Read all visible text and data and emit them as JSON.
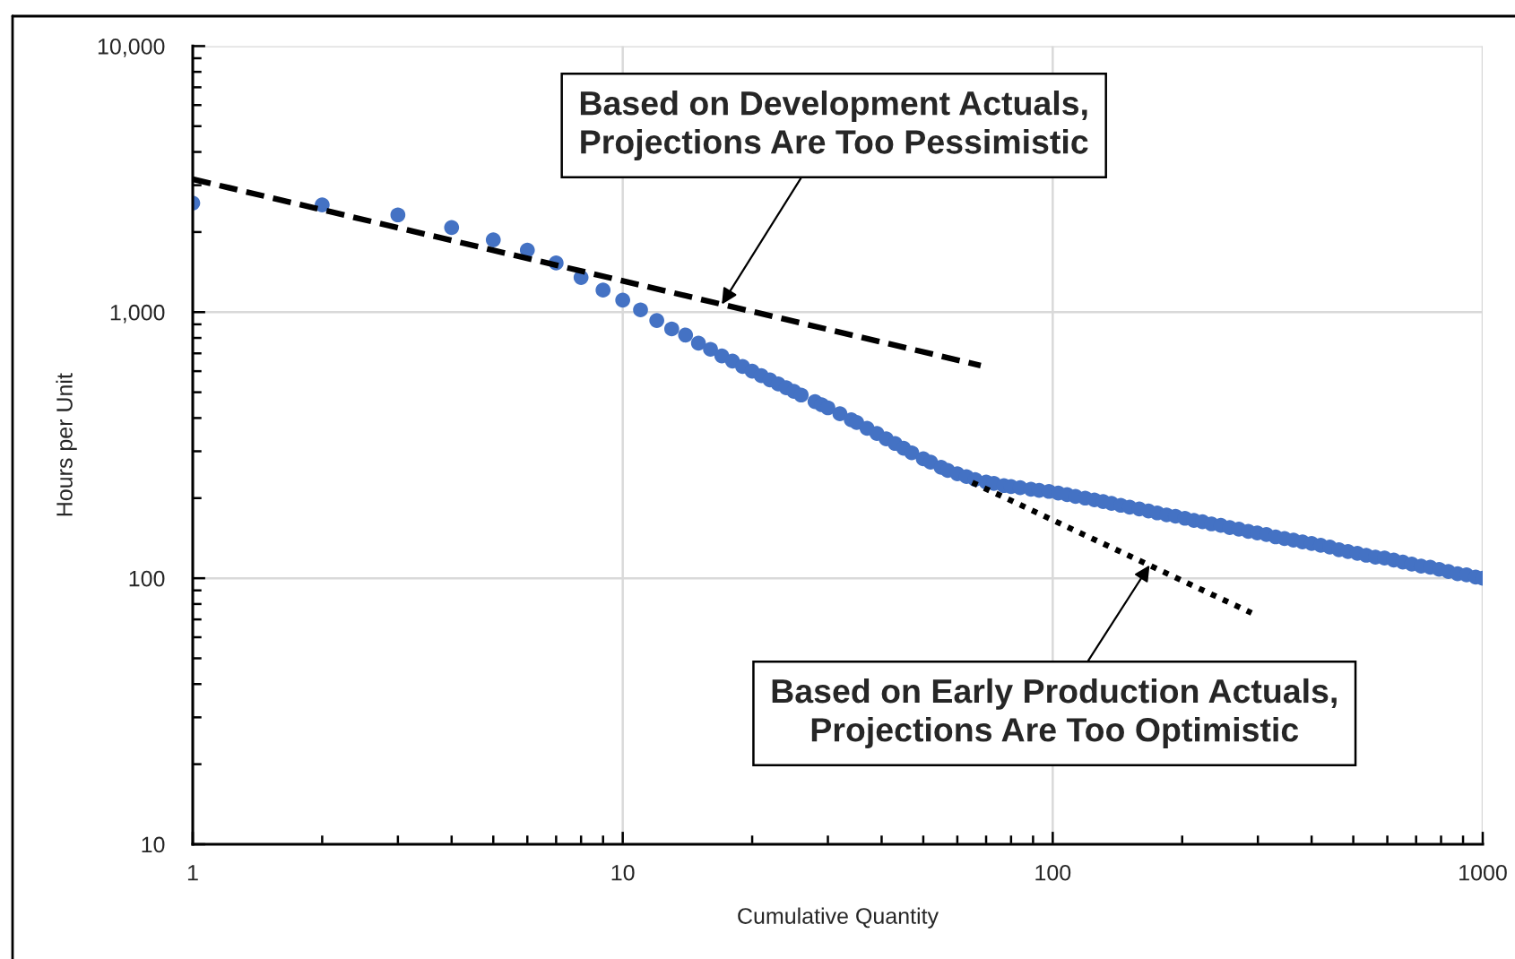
{
  "chart_data": {
    "type": "scatter",
    "xlabel": "Cumulative Quantity",
    "ylabel": "Hours per Unit",
    "log": "xy",
    "xlim": [
      1,
      1000
    ],
    "ylim": [
      10,
      10000
    ],
    "xticks": [
      1,
      10,
      100,
      1000,
      {
        "value": 2,
        "label": null
      },
      {
        "value": 3,
        "label": null
      },
      {
        "value": 4,
        "label": null
      },
      {
        "value": 5,
        "label": null
      },
      {
        "value": 6,
        "label": null
      },
      {
        "value": 7,
        "label": null
      },
      {
        "value": 8,
        "label": null
      },
      {
        "value": 9,
        "label": null
      },
      {
        "value": 20,
        "label": null
      },
      {
        "value": 30,
        "label": null
      },
      {
        "value": 40,
        "label": null
      },
      {
        "value": 50,
        "label": null
      },
      {
        "value": 60,
        "label": null
      },
      {
        "value": 70,
        "label": null
      },
      {
        "value": 80,
        "label": null
      },
      {
        "value": 90,
        "label": null
      },
      {
        "value": 200,
        "label": null
      },
      {
        "value": 300,
        "label": null
      },
      {
        "value": 400,
        "label": null
      },
      {
        "value": 500,
        "label": null
      },
      {
        "value": 600,
        "label": null
      },
      {
        "value": 700,
        "label": null
      },
      {
        "value": 800,
        "label": null
      },
      {
        "value": 900,
        "label": null
      }
    ],
    "yticks": [
      10,
      100,
      {
        "value": 1000,
        "label": "1,000"
      },
      {
        "value": 10000,
        "label": "10,000"
      },
      {
        "value": 20,
        "label": null
      },
      {
        "value": 30,
        "label": null
      },
      {
        "value": 40,
        "label": null
      },
      {
        "value": 50,
        "label": null
      },
      {
        "value": 60,
        "label": null
      },
      {
        "value": 70,
        "label": null
      },
      {
        "value": 80,
        "label": null
      },
      {
        "value": 90,
        "label": null
      },
      {
        "value": 200,
        "label": null
      },
      {
        "value": 300,
        "label": null
      },
      {
        "value": 400,
        "label": null
      },
      {
        "value": 500,
        "label": null
      },
      {
        "value": 600,
        "label": null
      },
      {
        "value": 700,
        "label": null
      },
      {
        "value": 800,
        "label": null
      },
      {
        "value": 900,
        "label": null
      },
      {
        "value": 2000,
        "label": null
      },
      {
        "value": 3000,
        "label": null
      },
      {
        "value": 4000,
        "label": null
      },
      {
        "value": 5000,
        "label": null
      },
      {
        "value": 6000,
        "label": null
      },
      {
        "value": 7000,
        "label": null
      },
      {
        "value": 8000,
        "label": null
      },
      {
        "value": 9000,
        "label": null
      }
    ],
    "grid": true,
    "marker": "circle",
    "series": [
      {
        "color": "#4472c4",
        "x": [
          1,
          2,
          3,
          4,
          5,
          6,
          7,
          8,
          9,
          10,
          11,
          12,
          13,
          14,
          15,
          16,
          17,
          18,
          19,
          20,
          21,
          22,
          23,
          24,
          25,
          26,
          28,
          29,
          30,
          32,
          34,
          35,
          37,
          39,
          41,
          43,
          45,
          47,
          50,
          52,
          55,
          57,
          60,
          63,
          66,
          70,
          73,
          77,
          80,
          84,
          89,
          93,
          98,
          103,
          108,
          113,
          119,
          125,
          131,
          137,
          144,
          151,
          159,
          167,
          175,
          184,
          193,
          203,
          213,
          223,
          234,
          246,
          258,
          271,
          285,
          299,
          314,
          330,
          346,
          363,
          381,
          400,
          420,
          441,
          463,
          486,
          511,
          536,
          563,
          591,
          621,
          652,
          684,
          719,
          755,
          792,
          832,
          874,
          917,
          963,
          1000
        ],
        "values": [
          2570,
          2530,
          2320,
          2080,
          1870,
          1710,
          1530,
          1350,
          1210,
          1110,
          1020,
          930,
          865,
          820,
          765,
          725,
          685,
          655,
          625,
          600,
          577,
          556,
          537,
          520,
          504,
          488,
          461,
          449,
          437,
          415,
          394,
          385,
          366,
          350,
          334,
          321,
          308,
          296,
          281,
          273,
          261,
          254,
          247,
          241,
          235,
          230,
          227,
          223,
          221,
          219,
          216,
          214,
          212,
          209,
          206,
          203,
          200,
          197,
          194,
          191,
          188,
          185,
          182,
          179,
          176,
          173,
          171,
          168,
          165,
          163,
          160,
          158,
          155,
          153,
          150,
          148,
          146,
          143,
          141,
          139,
          137,
          135,
          133,
          131,
          128,
          126,
          124,
          122,
          120,
          119,
          117,
          115,
          113,
          111,
          110,
          108,
          106,
          104,
          103,
          101,
          100
        ]
      },
      {
        "type": "line",
        "color": "#000000",
        "line_style": "dashed",
        "marker": "none",
        "x": [
          1,
          68
        ],
        "values": [
          3160,
          630
        ]
      },
      {
        "type": "line",
        "color": "#000000",
        "line_style": "dotted",
        "marker": "none",
        "x": [
          65,
          290
        ],
        "values": [
          229,
          74
        ]
      }
    ],
    "annotations": [
      {
        "text": "Based on Development Actuals,\nProjections Are Too Pessimistic",
        "x": 17,
        "y": 1070
      },
      {
        "text": "Based on Early Production Actuals,\nProjections Are Too Optimistic",
        "x": 168,
        "y": 112
      }
    ]
  }
}
